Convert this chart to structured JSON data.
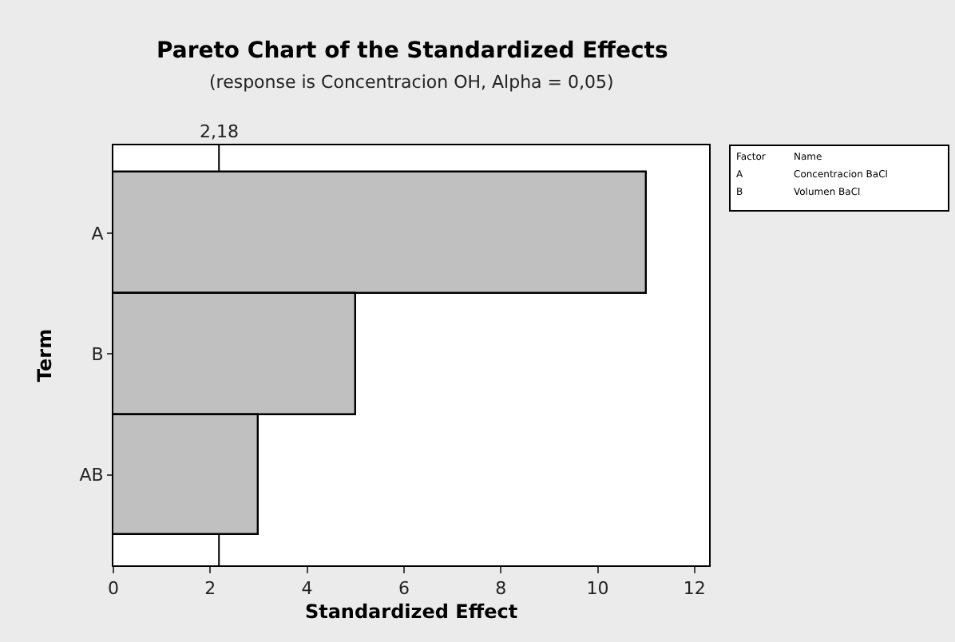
{
  "chart_data": {
    "type": "bar",
    "orientation": "horizontal",
    "title": "Pareto Chart of the Standardized Effects",
    "subtitle": "(response is Concentracion OH, Alpha = 0,05)",
    "xlabel": "Standardized Effect",
    "ylabel": "Term",
    "categories": [
      "A",
      "B",
      "AB"
    ],
    "values": [
      11.0,
      5.0,
      3.0
    ],
    "color": "#c0c0c0",
    "xlim": [
      0,
      12.3
    ],
    "xticks": [
      0,
      2,
      4,
      6,
      8,
      10,
      12
    ],
    "ref_lines": [
      {
        "axis": "x",
        "value": 2.18,
        "label": "2,18"
      }
    ],
    "annotations": [
      "Factor",
      "Name",
      "A",
      "Concentracion BaCl",
      "B",
      "Volumen BaCl"
    ]
  }
}
